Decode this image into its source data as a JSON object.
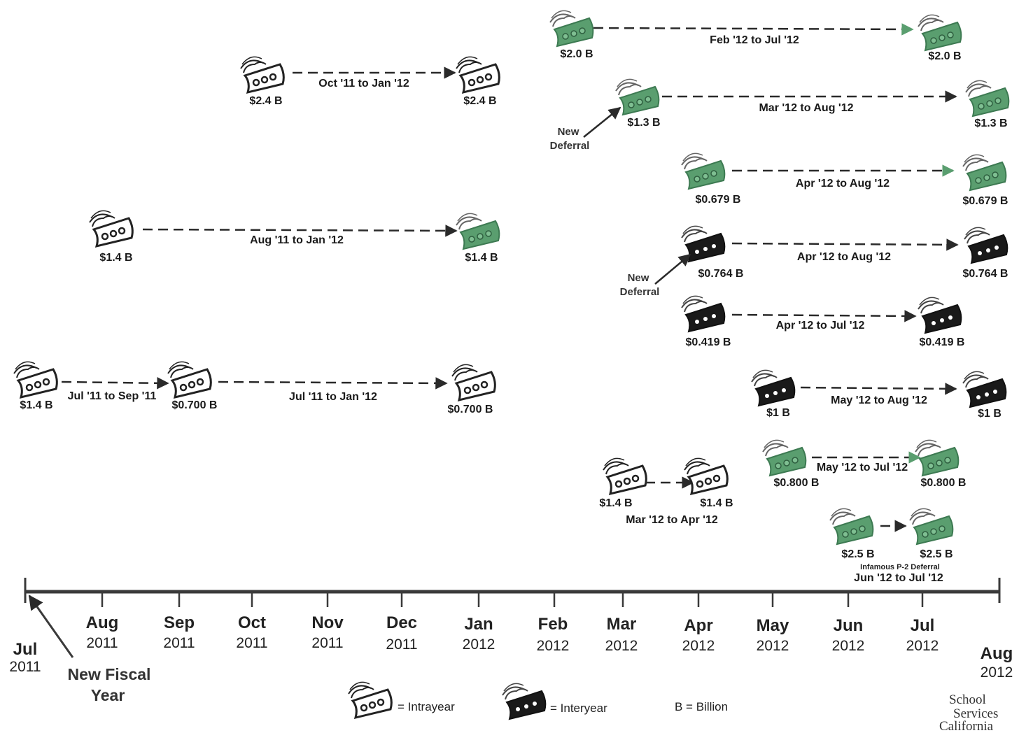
{
  "colors": {
    "intrayear": "#5a9e6f",
    "interyear": "#1a1a1a",
    "axis": "#3a3a3a",
    "outline": "#222222"
  },
  "deferrals": [
    {
      "id": "feb-jul-12",
      "from_amount": "$2.0 B",
      "to_amount": "$2.0 B",
      "range": "Feb '12 to Jul '12",
      "from_style": "green",
      "to_style": "green"
    },
    {
      "id": "oct-jan",
      "from_amount": "$2.4 B",
      "to_amount": "$2.4 B",
      "range": "Oct '11 to Jan '12",
      "from_style": "outline",
      "to_style": "outline"
    },
    {
      "id": "mar-aug-12",
      "from_amount": "$1.3 B",
      "to_amount": "$1.3 B",
      "range": "Mar '12 to Aug '12",
      "from_style": "green",
      "to_style": "green"
    },
    {
      "id": "apr-aug-679",
      "from_amount": "$0.679 B",
      "to_amount": "$0.679 B",
      "range": "Apr '12 to Aug '12",
      "from_style": "green",
      "to_style": "green"
    },
    {
      "id": "aug-jan",
      "from_amount": "$1.4 B",
      "to_amount": "$1.4 B",
      "range": "Aug '11 to Jan '12",
      "from_style": "outline",
      "to_style": "green"
    },
    {
      "id": "apr-aug-764",
      "from_amount": "$0.764 B",
      "to_amount": "$0.764 B",
      "range": "Apr '12 to Aug '12",
      "from_style": "dark",
      "to_style": "dark"
    },
    {
      "id": "apr-jul-419",
      "from_amount": "$0.419 B",
      "to_amount": "$0.419 B",
      "range": "Apr '12 to Jul '12",
      "from_style": "dark",
      "to_style": "dark"
    },
    {
      "id": "jul-sep",
      "from_amount": "$1.4 B",
      "to_amount": "$0.700 B",
      "range": "Jul '11 to Sep '11",
      "from_style": "outline",
      "to_style": "outline"
    },
    {
      "id": "jul-jan",
      "from_amount": "",
      "to_amount": "$0.700 B",
      "range": "Jul '11 to Jan '12",
      "from_style": "outline",
      "to_style": "outline"
    },
    {
      "id": "may-aug-1",
      "from_amount": "$1 B",
      "to_amount": "$1 B",
      "range": "May '12 to Aug '12",
      "from_style": "dark",
      "to_style": "dark"
    },
    {
      "id": "may-jul-800",
      "from_amount": "$0.800 B",
      "to_amount": "$0.800 B",
      "range": "May '12 to Jul '12",
      "from_style": "green",
      "to_style": "green"
    },
    {
      "id": "mar-apr-12",
      "from_amount": "$1.4 B",
      "to_amount": "$1.4 B",
      "range": "Mar '12 to Apr '12",
      "from_style": "outline",
      "to_style": "outline"
    },
    {
      "id": "jun-jul-12",
      "from_amount": "$2.5 B",
      "to_amount": "$2.5 B",
      "range": "Jun '12 to Jul '12",
      "note": "Infamous P-2 Deferral",
      "from_style": "green",
      "to_style": "green"
    }
  ],
  "new_deferral_label": {
    "line1": "New",
    "line2": "Deferral"
  },
  "timeline": {
    "months": [
      {
        "month": "Jul",
        "year": "2011"
      },
      {
        "month": "Aug",
        "year": "2011"
      },
      {
        "month": "Sep",
        "year": "2011"
      },
      {
        "month": "Oct",
        "year": "2011"
      },
      {
        "month": "Nov",
        "year": "2011"
      },
      {
        "month": "Dec",
        "year": "2011"
      },
      {
        "month": "Jan",
        "year": "2012"
      },
      {
        "month": "Feb",
        "year": "2012"
      },
      {
        "month": "Mar",
        "year": "2012"
      },
      {
        "month": "Apr",
        "year": "2012"
      },
      {
        "month": "May",
        "year": "2012"
      },
      {
        "month": "Jun",
        "year": "2012"
      },
      {
        "month": "Jul",
        "year": "2012"
      },
      {
        "month": "Aug",
        "year": "2012"
      }
    ],
    "fiscal_label": {
      "line1": "New Fiscal",
      "line2": "Year"
    }
  },
  "legend": {
    "intrayear": "= Intrayear",
    "interyear": "= Interyear",
    "billion": "B = Billion"
  },
  "logo": {
    "line1": "School",
    "line2": "Services",
    "line3": "California"
  }
}
